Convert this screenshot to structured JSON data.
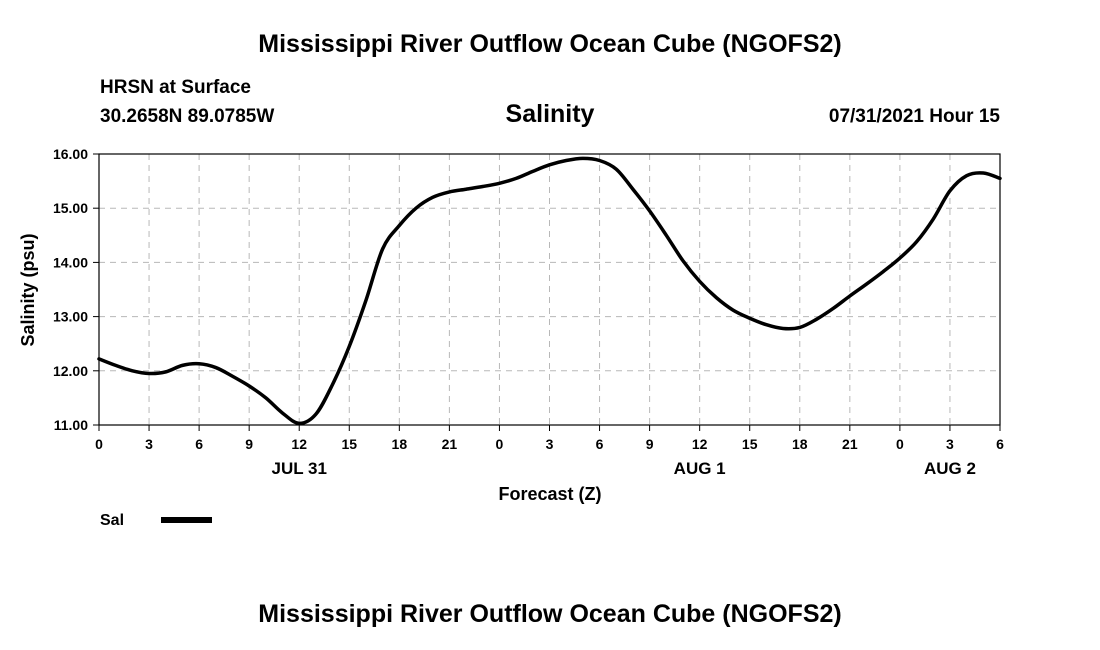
{
  "page_title": "Mississippi River Outflow Ocean Cube (NGOFS2)",
  "footer_title": "Mississippi River Outflow Ocean Cube (NGOFS2)",
  "station": {
    "name": "HRSN at Surface",
    "coords": "30.2658N  89.0785W",
    "datetime": "07/31/2021 Hour 15"
  },
  "chart_data": {
    "type": "line",
    "title": "Salinity",
    "xlabel": "Forecast (Z)",
    "ylabel": "Salinity (psu)",
    "xlim": [
      0,
      54
    ],
    "ylim": [
      11.0,
      16.0
    ],
    "grid": true,
    "x_ticks": [
      0,
      3,
      6,
      9,
      12,
      15,
      18,
      21,
      24,
      27,
      30,
      33,
      36,
      39,
      42,
      45,
      48,
      51,
      54
    ],
    "x_tick_labels": [
      "0",
      "3",
      "6",
      "9",
      "12",
      "15",
      "18",
      "21",
      "0",
      "3",
      "6",
      "9",
      "12",
      "15",
      "18",
      "21",
      "0",
      "3",
      "6"
    ],
    "y_ticks": [
      11,
      12,
      13,
      14,
      15,
      16
    ],
    "y_tick_labels": [
      "11.00",
      "12.00",
      "13.00",
      "14.00",
      "15.00",
      "16.00"
    ],
    "day_labels": [
      {
        "x": 12,
        "label": "JUL 31"
      },
      {
        "x": 36,
        "label": "AUG 1"
      },
      {
        "x": 51,
        "label": "AUG 2"
      }
    ],
    "legend": {
      "position": "bottom-left",
      "label": "Sal"
    },
    "series": [
      {
        "name": "Sal",
        "x": [
          0,
          1,
          2,
          3,
          4,
          5,
          6,
          7,
          8,
          9,
          10,
          11,
          12,
          13,
          14,
          15,
          16,
          17,
          18,
          19,
          20,
          21,
          22,
          23,
          24,
          25,
          26,
          27,
          28,
          29,
          30,
          31,
          32,
          33,
          34,
          35,
          36,
          37,
          38,
          39,
          40,
          41,
          42,
          43,
          44,
          45,
          46,
          47,
          48,
          49,
          50,
          51,
          52,
          53,
          54
        ],
        "values": [
          12.22,
          12.1,
          12.0,
          11.95,
          11.98,
          12.1,
          12.13,
          12.06,
          11.9,
          11.72,
          11.5,
          11.22,
          11.03,
          11.2,
          11.75,
          12.45,
          13.3,
          14.25,
          14.68,
          15.0,
          15.2,
          15.3,
          15.35,
          15.4,
          15.46,
          15.55,
          15.68,
          15.8,
          15.88,
          15.92,
          15.88,
          15.72,
          15.35,
          14.95,
          14.5,
          14.03,
          13.65,
          13.35,
          13.12,
          12.97,
          12.85,
          12.78,
          12.8,
          12.95,
          13.15,
          13.38,
          13.6,
          13.83,
          14.08,
          14.38,
          14.8,
          15.32,
          15.6,
          15.65,
          15.55
        ]
      }
    ]
  }
}
